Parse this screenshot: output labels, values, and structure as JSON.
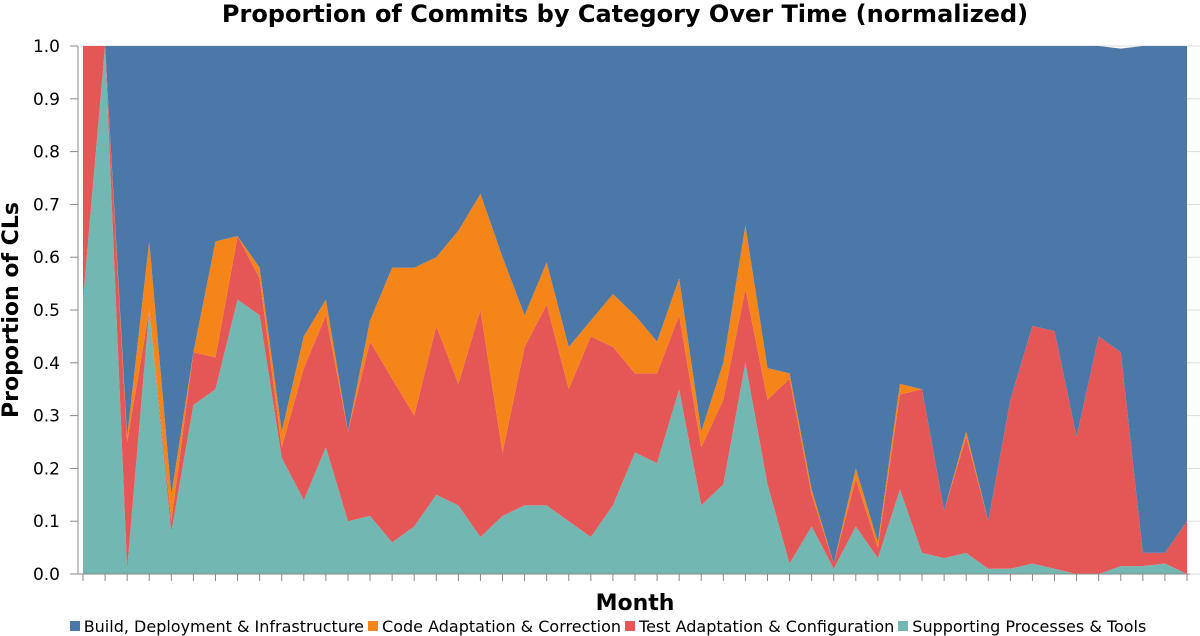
{
  "chart_data": {
    "type": "area",
    "stacked": true,
    "normalized": true,
    "title": "Proportion of Commits by Category Over Time (normalized)",
    "xlabel": "Month",
    "ylabel": "Proportion of CLs",
    "ylim": [
      0,
      1
    ],
    "yticks": [
      "0.0",
      "0.1",
      "0.2",
      "0.3",
      "0.4",
      "0.5",
      "0.6",
      "0.7",
      "0.8",
      "0.9",
      "1.0"
    ],
    "grid": true,
    "legend_position": "bottom",
    "x": [
      0,
      1,
      2,
      3,
      4,
      5,
      6,
      7,
      8,
      9,
      10,
      11,
      12,
      13,
      14,
      15,
      16,
      17,
      18,
      19,
      20,
      21,
      22,
      23,
      24,
      25,
      26,
      27,
      28,
      29,
      30,
      31,
      32,
      33,
      34,
      35,
      36,
      37,
      38,
      39,
      40,
      41,
      42,
      43,
      44,
      45,
      46,
      47,
      48,
      49,
      50
    ],
    "series": [
      {
        "name": "Supporting Processes & Tools",
        "color": "#72b7b2",
        "values": [
          0.52,
          1.0,
          0.01,
          0.5,
          0.08,
          0.32,
          0.35,
          0.52,
          0.49,
          0.22,
          0.14,
          0.24,
          0.1,
          0.11,
          0.06,
          0.09,
          0.15,
          0.13,
          0.07,
          0.11,
          0.13,
          0.13,
          0.1,
          0.07,
          0.13,
          0.23,
          0.21,
          0.35,
          0.13,
          0.17,
          0.4,
          0.17,
          0.02,
          0.09,
          0.01,
          0.09,
          0.03,
          0.16,
          0.04,
          0.03,
          0.04,
          0.01,
          0.01,
          0.02,
          0.01,
          0.0,
          0.0,
          0.015,
          0.015,
          0.02,
          0.0
        ]
      },
      {
        "name": "Test Adaptation & Configuration",
        "color": "#e45756",
        "values": [
          0.48,
          0.0,
          0.24,
          0.0,
          0.02,
          0.1,
          0.06,
          0.12,
          0.07,
          0.02,
          0.25,
          0.25,
          0.17,
          0.33,
          0.31,
          0.21,
          0.32,
          0.23,
          0.43,
          0.12,
          0.3,
          0.38,
          0.25,
          0.38,
          0.3,
          0.15,
          0.17,
          0.14,
          0.11,
          0.16,
          0.14,
          0.16,
          0.35,
          0.06,
          0.01,
          0.09,
          0.02,
          0.18,
          0.31,
          0.09,
          0.22,
          0.09,
          0.32,
          0.45,
          0.45,
          0.26,
          0.45,
          0.405,
          0.025,
          0.02,
          0.1
        ]
      },
      {
        "name": "Code Adaptation & Correction",
        "color": "#f58518",
        "values": [
          0,
          0,
          0.01,
          0.13,
          0.05,
          0,
          0.22,
          0,
          0.02,
          0.03,
          0.06,
          0.03,
          0,
          0.04,
          0.21,
          0.28,
          0.13,
          0.29,
          0.22,
          0.37,
          0.06,
          0.08,
          0.08,
          0.03,
          0.1,
          0.11,
          0.06,
          0.07,
          0.03,
          0.07,
          0.12,
          0.06,
          0.01,
          0.01,
          0,
          0.02,
          0.01,
          0.02,
          0,
          0,
          0.01,
          0,
          0,
          0,
          0,
          0,
          0,
          0,
          0,
          0,
          0
        ]
      },
      {
        "name": "Build, Deployment & Infrastructure",
        "color": "#4c78a8",
        "values": [
          0,
          0,
          0.74,
          0.37,
          0.85,
          0.58,
          0.37,
          0.36,
          0.42,
          0.73,
          0.55,
          0.48,
          0.73,
          0.52,
          0.42,
          0.42,
          0.4,
          0.35,
          0.28,
          0.4,
          0.51,
          0.41,
          0.57,
          0.52,
          0.47,
          0.51,
          0.56,
          0.44,
          0.73,
          0.6,
          0.34,
          0.61,
          0.62,
          0.84,
          0.98,
          0.8,
          0.94,
          0.64,
          0.65,
          0.88,
          0.73,
          0.9,
          0.67,
          0.53,
          0.54,
          0.74,
          0.55,
          0.575,
          0.96,
          0.96,
          0.9
        ]
      }
    ],
    "legend": [
      "Build, Deployment & Infrastructure",
      "Code Adaptation & Correction",
      "Test Adaptation & Configuration",
      "Supporting Processes & Tools"
    ]
  }
}
